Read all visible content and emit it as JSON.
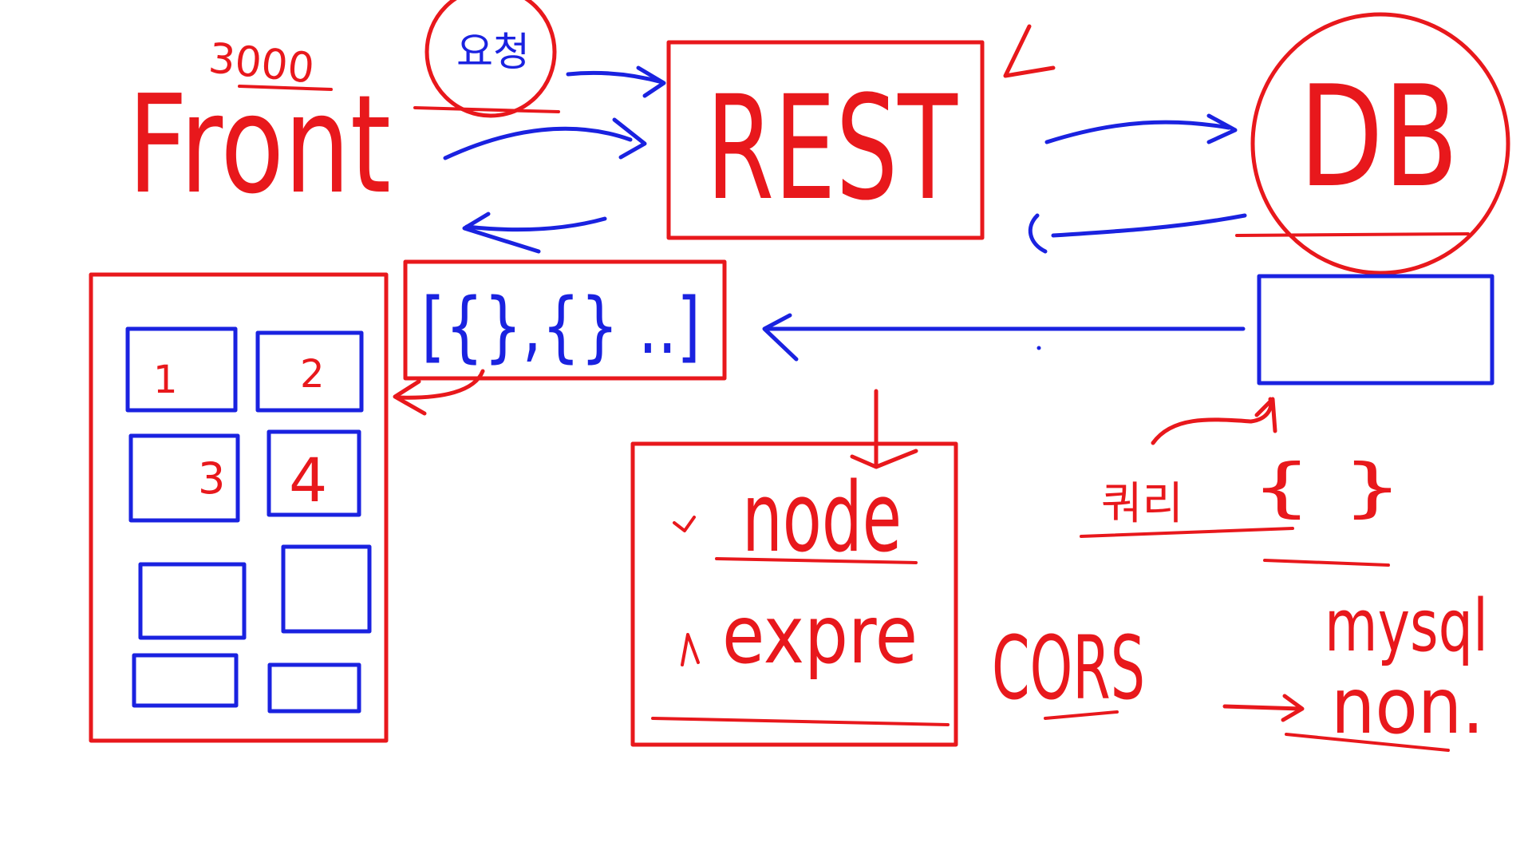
{
  "colors": {
    "red": "#e8181c",
    "blue": "#1a22e0",
    "background": "#ffffff"
  },
  "labels": {
    "front": "Front",
    "port": "3000",
    "request_badge": "요청",
    "rest": "REST",
    "db": "DB",
    "json_array": "[{},{} ..]",
    "node": "node",
    "express": "expre",
    "cors": "CORS",
    "query": "쿼리",
    "query_braces": "{ }",
    "mysql": "mysql",
    "non": "non.",
    "card_1": "1",
    "card_2": "2",
    "card_3": "3",
    "card_4": "4"
  }
}
